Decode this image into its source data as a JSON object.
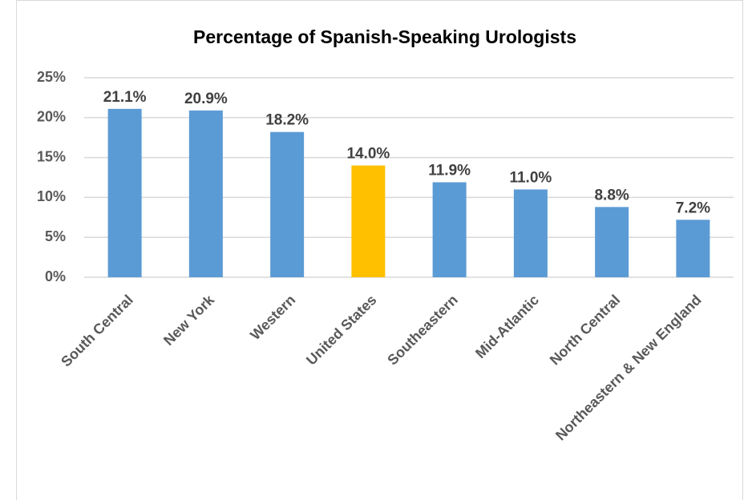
{
  "chart_data": {
    "type": "bar",
    "title": "Percentage of Spanish-Speaking Urologists",
    "categories": [
      "South Central",
      "New York",
      "Western",
      "United States",
      "Southeastern",
      "Mid-Atlantic",
      "North Central",
      "Northeastern & New England"
    ],
    "values": [
      21.1,
      20.9,
      18.2,
      14.0,
      11.9,
      11.0,
      8.8,
      7.2
    ],
    "value_labels": [
      "21.1%",
      "20.9%",
      "18.2%",
      "14.0%",
      "11.9%",
      "11.0%",
      "8.8%",
      "7.2%"
    ],
    "colors": [
      "#5b9bd5",
      "#5b9bd5",
      "#5b9bd5",
      "#ffc000",
      "#5b9bd5",
      "#5b9bd5",
      "#5b9bd5",
      "#5b9bd5"
    ],
    "ylim": [
      0,
      25
    ],
    "yticks": [
      {
        "value": 0,
        "label": "0%"
      },
      {
        "value": 5,
        "label": "5%"
      },
      {
        "value": 10,
        "label": "10%"
      },
      {
        "value": 15,
        "label": "15%"
      },
      {
        "value": 20,
        "label": "20%"
      },
      {
        "value": 25,
        "label": "25%"
      }
    ],
    "grid": true
  }
}
